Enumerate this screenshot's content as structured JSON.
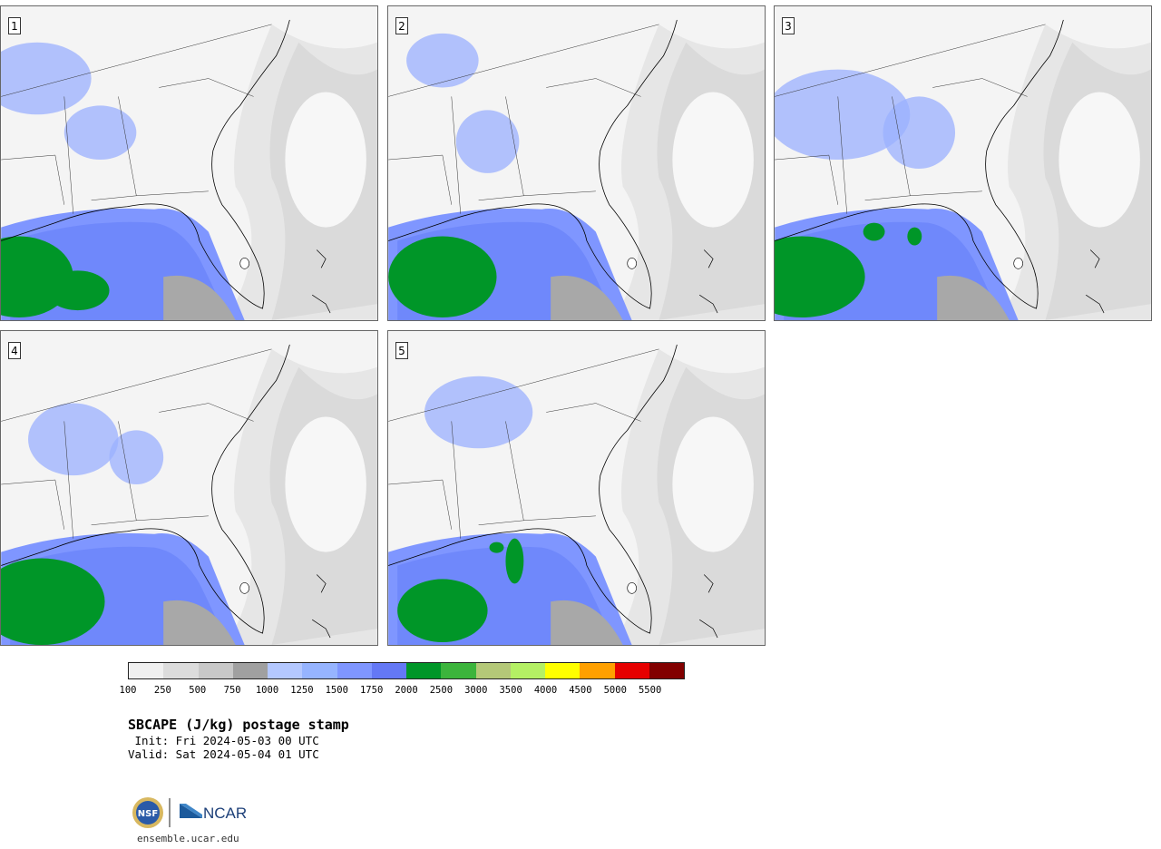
{
  "panels": [
    {
      "label": "1"
    },
    {
      "label": "2"
    },
    {
      "label": "3"
    },
    {
      "label": "4"
    },
    {
      "label": "5"
    }
  ],
  "colorbar": {
    "colors": [
      "#f0f0f0",
      "#dcdcdc",
      "#c8c8c8",
      "#a0a0a0",
      "#b4c8ff",
      "#96b4ff",
      "#7f96ff",
      "#6478f5",
      "#009628",
      "#3cb43c",
      "#b4c878",
      "#b4f064",
      "#ffff00",
      "#ffa000",
      "#e60000",
      "#820000"
    ],
    "tick_labels": [
      "100",
      "250",
      "500",
      "750",
      "1000",
      "1250",
      "1500",
      "1750",
      "2000",
      "2500",
      "3000",
      "3500",
      "4000",
      "4500",
      "5000",
      "5500"
    ]
  },
  "title": "SBCAPE (J/kg) postage stamp",
  "init": " Init: Fri 2024-05-03 00 UTC",
  "valid": "Valid: Sat 2024-05-04 01 UTC",
  "footer": {
    "logo_text": "NCAR",
    "nsf_text": "NSF",
    "site": "ensemble.ucar.edu"
  }
}
